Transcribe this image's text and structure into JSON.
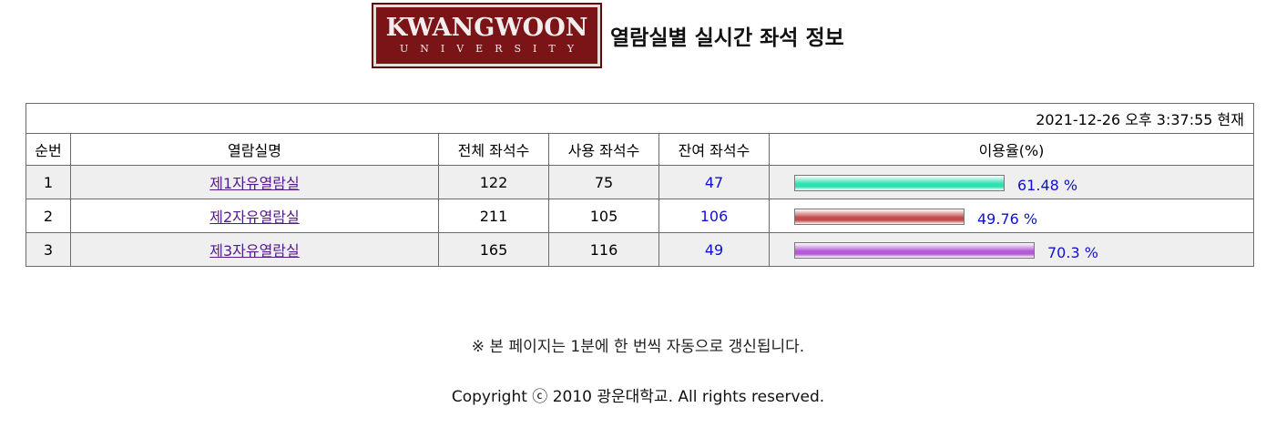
{
  "logo": {
    "main": "KWANGWOON",
    "sub": "UNIVERSITY"
  },
  "page_title": "열람실별 실시간 좌석 정보",
  "timestamp": "2021-12-26 오후 3:37:55 현재",
  "table": {
    "headers": [
      "순번",
      "열람실명",
      "전체 좌석수",
      "사용 좌석수",
      "잔여 좌석수",
      "이용율(%)"
    ],
    "rows": [
      {
        "no": "1",
        "name": "제1자유열람실",
        "total": "122",
        "used": "75",
        "remain": "47",
        "rate": 61.48,
        "rate_text": "61.48 %",
        "bar_color": "#2fe0b0"
      },
      {
        "no": "2",
        "name": "제2자유열람실",
        "total": "211",
        "used": "105",
        "remain": "106",
        "rate": 49.76,
        "rate_text": "49.76 %",
        "bar_color": "#c24b4b"
      },
      {
        "no": "3",
        "name": "제3자유열람실",
        "total": "165",
        "used": "116",
        "remain": "49",
        "rate": 70.3,
        "rate_text": "70.3 %",
        "bar_color": "#b45ad6"
      }
    ]
  },
  "notice": "※ 본 페이지는 1분에 한 번씩 자동으로 갱신됩니다.",
  "copyright": "Copyright ⓒ 2010 광운대학교. All rights reserved."
}
